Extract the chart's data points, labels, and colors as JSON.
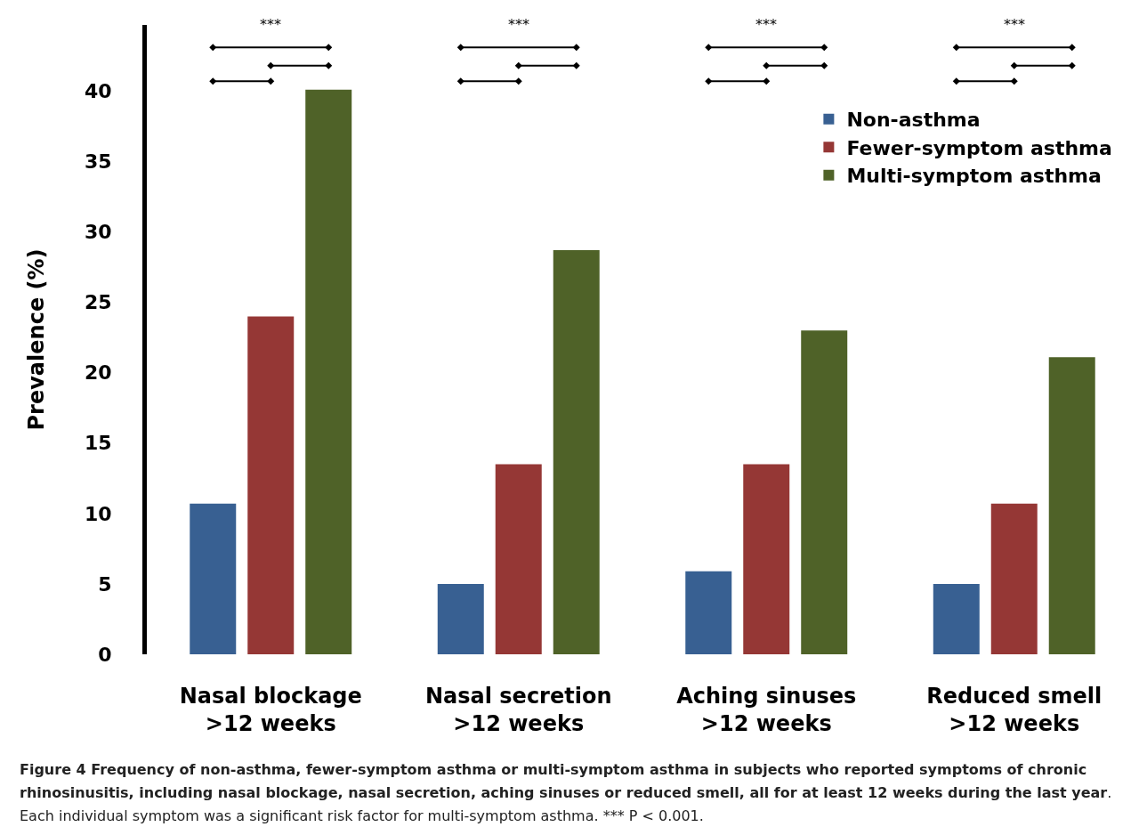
{
  "chart_data": {
    "type": "bar",
    "ylabel": "Prevalence (%)",
    "categories": [
      "Nasal blockage\n>12 weeks",
      "Nasal secretion\n>12 weeks",
      "Aching sinuses\n>12 weeks",
      "Reduced smell\n>12 weeks"
    ],
    "series": [
      {
        "name": "Non-asthma",
        "color": "#386092",
        "values": [
          10.7,
          5.0,
          5.9,
          5.0
        ]
      },
      {
        "name": "Fewer-symptom asthma",
        "color": "#953735",
        "values": [
          24.0,
          13.5,
          13.5,
          10.7
        ]
      },
      {
        "name": "Multi-symptom asthma",
        "color": "#4f6228",
        "values": [
          40.1,
          28.7,
          23.0,
          21.1
        ]
      }
    ],
    "ylim": [
      0,
      44.7
    ],
    "yticks": [
      0,
      5,
      10,
      15,
      20,
      25,
      30,
      35,
      40
    ],
    "grid": false,
    "legend": "top right",
    "annotations": [
      "***",
      "***",
      "***",
      "***",
      "Figure 4 Frequency of non-asthma, fewer-symptom asthma or multi-symptom asthma in subjects who reported symptoms of chronic rhinosinusitis, including nasal blockage, nasal secretion, aching sinuses or reduced smell, all for at least 12 weeks during the last year",
      ". Each individual symptom was a significant risk factor for multi-symptom asthma. *** P < 0.001."
    ]
  }
}
